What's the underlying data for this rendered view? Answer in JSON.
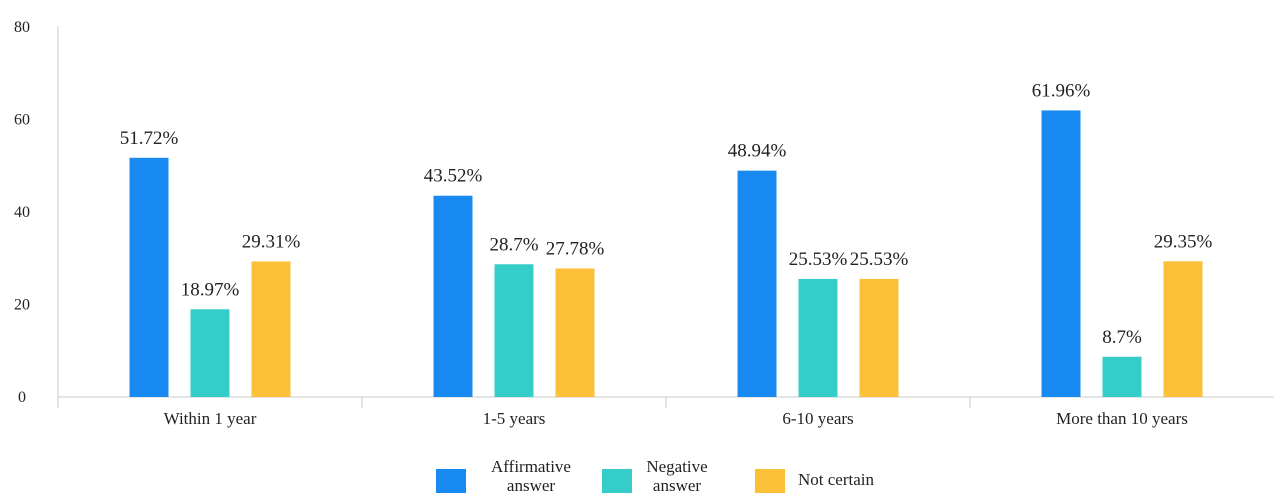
{
  "chart_data": {
    "type": "bar",
    "categories": [
      "Within 1 year",
      "1-5 years",
      "6-10 years",
      "More than 10 years"
    ],
    "series": [
      {
        "name": "Affirmative answer",
        "legend_lines": [
          "Affirmative",
          "answer"
        ],
        "color": "#1789f0",
        "values": [
          51.72,
          43.52,
          48.94,
          61.96
        ],
        "labels": [
          "51.72%",
          "43.52%",
          "48.94%",
          "61.96%"
        ]
      },
      {
        "name": "Negative answer",
        "legend_lines": [
          "Negative",
          "answer"
        ],
        "color": "#35cdc9",
        "values": [
          18.97,
          28.7,
          25.53,
          8.7
        ],
        "labels": [
          "18.97%",
          "28.7%",
          "25.53%",
          "8.7%"
        ]
      },
      {
        "name": "Not certain",
        "legend_lines": [
          "Not certain"
        ],
        "color": "#fbbf38",
        "values": [
          29.31,
          27.78,
          25.53,
          29.35
        ],
        "labels": [
          "29.31%",
          "27.78%",
          "25.53%",
          "29.35%"
        ]
      }
    ],
    "yticks": [
      "0",
      "20",
      "40",
      "60",
      "80"
    ],
    "ylim": [
      0,
      80
    ],
    "grid": false,
    "legend": "bottom"
  }
}
